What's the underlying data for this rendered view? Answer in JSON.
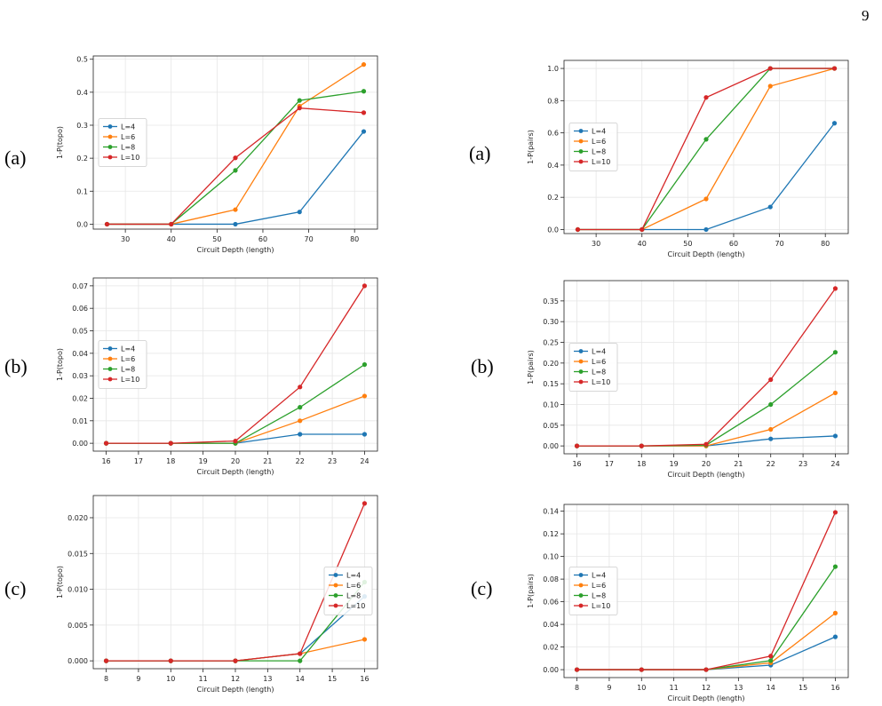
{
  "page_number": "9",
  "panel_labels": [
    "(a)",
    "(a)",
    "(b)",
    "(b)",
    "(c)",
    "(c)"
  ],
  "colors": {
    "L=4": "#1f77b4",
    "L=6": "#ff7f0e",
    "L=8": "#2ca02c",
    "L=10": "#d62728"
  },
  "chart_data": [
    {
      "type": "line",
      "xlabel": "Circuit Depth (length)",
      "ylabel": "1-P(topo)",
      "x": [
        26,
        40,
        54,
        68,
        82
      ],
      "xlim": [
        23,
        85
      ],
      "ylim": [
        -0.015,
        0.51
      ],
      "xticks": [
        30,
        40,
        50,
        60,
        70,
        80
      ],
      "yticks": [
        0.0,
        0.1,
        0.2,
        0.3,
        0.4,
        0.5
      ],
      "ytick_labels": [
        "0.0",
        "0.1",
        "0.2",
        "0.3",
        "0.4",
        "0.5"
      ],
      "legend": "center-left",
      "grid": true,
      "series": [
        {
          "name": "L=4",
          "values": [
            0.0,
            0.0,
            0.0,
            0.037,
            0.281
          ]
        },
        {
          "name": "L=6",
          "values": [
            0.0,
            0.0,
            0.044,
            0.358,
            0.484
          ]
        },
        {
          "name": "L=8",
          "values": [
            0.0,
            0.0,
            0.163,
            0.375,
            0.403
          ]
        },
        {
          "name": "L=10",
          "values": [
            0.0,
            0.0,
            0.201,
            0.352,
            0.338
          ]
        }
      ]
    },
    {
      "type": "line",
      "xlabel": "Circuit Depth (length)",
      "ylabel": "1-P(pairs)",
      "x": [
        26,
        40,
        54,
        68,
        82
      ],
      "xlim": [
        23,
        85
      ],
      "ylim": [
        -0.025,
        1.05
      ],
      "xticks": [
        30,
        40,
        50,
        60,
        70,
        80
      ],
      "yticks": [
        0.0,
        0.2,
        0.4,
        0.6,
        0.8,
        1.0
      ],
      "ytick_labels": [
        "0.0",
        "0.2",
        "0.4",
        "0.6",
        "0.8",
        "1.0"
      ],
      "legend": "center-left",
      "grid": true,
      "series": [
        {
          "name": "L=4",
          "values": [
            0.0,
            0.0,
            0.0,
            0.14,
            0.66
          ]
        },
        {
          "name": "L=6",
          "values": [
            0.0,
            0.0,
            0.19,
            0.89,
            1.0
          ]
        },
        {
          "name": "L=8",
          "values": [
            0.0,
            0.0,
            0.56,
            1.0,
            1.0
          ]
        },
        {
          "name": "L=10",
          "values": [
            0.0,
            0.0,
            0.82,
            1.0,
            1.0
          ]
        }
      ]
    },
    {
      "type": "line",
      "xlabel": "Circuit Depth (length)",
      "ylabel": "1-P(topo)",
      "x": [
        16,
        18,
        20,
        22,
        24
      ],
      "xlim": [
        15.6,
        24.4
      ],
      "ylim": [
        -0.0035,
        0.0735
      ],
      "xticks": [
        16,
        17,
        18,
        19,
        20,
        21,
        22,
        23,
        24
      ],
      "yticks": [
        0.0,
        0.01,
        0.02,
        0.03,
        0.04,
        0.05,
        0.06,
        0.07
      ],
      "ytick_labels": [
        "0.00",
        "0.01",
        "0.02",
        "0.03",
        "0.04",
        "0.05",
        "0.06",
        "0.07"
      ],
      "legend": "center-left",
      "grid": true,
      "series": [
        {
          "name": "L=4",
          "values": [
            0.0,
            0.0,
            0.0,
            0.004,
            0.004
          ]
        },
        {
          "name": "L=6",
          "values": [
            0.0,
            0.0,
            0.0,
            0.01,
            0.021
          ]
        },
        {
          "name": "L=8",
          "values": [
            0.0,
            0.0,
            0.0,
            0.016,
            0.035
          ]
        },
        {
          "name": "L=10",
          "values": [
            0.0,
            0.0,
            0.001,
            0.025,
            0.07
          ]
        }
      ]
    },
    {
      "type": "line",
      "xlabel": "Circuit Depth (length)",
      "ylabel": "1-P(pairs)",
      "x": [
        16,
        18,
        20,
        22,
        24
      ],
      "xlim": [
        15.6,
        24.4
      ],
      "ylim": [
        -0.019,
        0.399
      ],
      "xticks": [
        16,
        17,
        18,
        19,
        20,
        21,
        22,
        23,
        24
      ],
      "yticks": [
        0.0,
        0.05,
        0.1,
        0.15,
        0.2,
        0.25,
        0.3,
        0.35
      ],
      "ytick_labels": [
        "0.00",
        "0.05",
        "0.10",
        "0.15",
        "0.20",
        "0.25",
        "0.30",
        "0.35"
      ],
      "legend": "center-left",
      "grid": true,
      "series": [
        {
          "name": "L=4",
          "values": [
            0.0,
            0.0,
            0.0,
            0.017,
            0.024
          ]
        },
        {
          "name": "L=6",
          "values": [
            0.0,
            0.0,
            0.0,
            0.04,
            0.128
          ]
        },
        {
          "name": "L=8",
          "values": [
            0.0,
            0.0,
            0.002,
            0.1,
            0.226
          ]
        },
        {
          "name": "L=10",
          "values": [
            0.0,
            0.0,
            0.004,
            0.16,
            0.38
          ]
        }
      ]
    },
    {
      "type": "line",
      "xlabel": "Circuit Depth (length)",
      "ylabel": "1-P(topo)",
      "x": [
        8,
        10,
        12,
        14,
        16
      ],
      "xlim": [
        7.6,
        16.4
      ],
      "ylim": [
        -0.0011,
        0.0231
      ],
      "xticks": [
        8,
        9,
        10,
        11,
        12,
        13,
        14,
        15,
        16
      ],
      "yticks": [
        0.0,
        0.005,
        0.01,
        0.015,
        0.02
      ],
      "ytick_labels": [
        "0.000",
        "0.005",
        "0.010",
        "0.015",
        "0.020"
      ],
      "legend": "center-right",
      "grid": true,
      "series": [
        {
          "name": "L=4",
          "values": [
            0.0,
            0.0,
            0.0,
            0.001,
            0.009
          ]
        },
        {
          "name": "L=6",
          "values": [
            0.0,
            0.0,
            0.0,
            0.001,
            0.003
          ]
        },
        {
          "name": "L=8",
          "values": [
            0.0,
            0.0,
            0.0,
            0.0,
            0.011
          ]
        },
        {
          "name": "L=10",
          "values": [
            0.0,
            0.0,
            0.0,
            0.001,
            0.022
          ]
        }
      ]
    },
    {
      "type": "line",
      "xlabel": "Circuit Depth (length)",
      "ylabel": "1-P(pairs)",
      "x": [
        8,
        10,
        12,
        14,
        16
      ],
      "xlim": [
        7.6,
        16.4
      ],
      "ylim": [
        -0.007,
        0.146
      ],
      "xticks": [
        8,
        9,
        10,
        11,
        12,
        13,
        14,
        15,
        16
      ],
      "yticks": [
        0.0,
        0.02,
        0.04,
        0.06,
        0.08,
        0.1,
        0.12,
        0.14
      ],
      "ytick_labels": [
        "0.00",
        "0.02",
        "0.04",
        "0.06",
        "0.08",
        "0.10",
        "0.12",
        "0.14"
      ],
      "legend": "center-left",
      "grid": true,
      "series": [
        {
          "name": "L=4",
          "values": [
            0.0,
            0.0,
            0.0,
            0.004,
            0.029
          ]
        },
        {
          "name": "L=6",
          "values": [
            0.0,
            0.0,
            0.0,
            0.006,
            0.05
          ]
        },
        {
          "name": "L=8",
          "values": [
            0.0,
            0.0,
            0.0,
            0.008,
            0.091
          ]
        },
        {
          "name": "L=10",
          "values": [
            0.0,
            0.0,
            0.0,
            0.012,
            0.139
          ]
        }
      ]
    }
  ]
}
